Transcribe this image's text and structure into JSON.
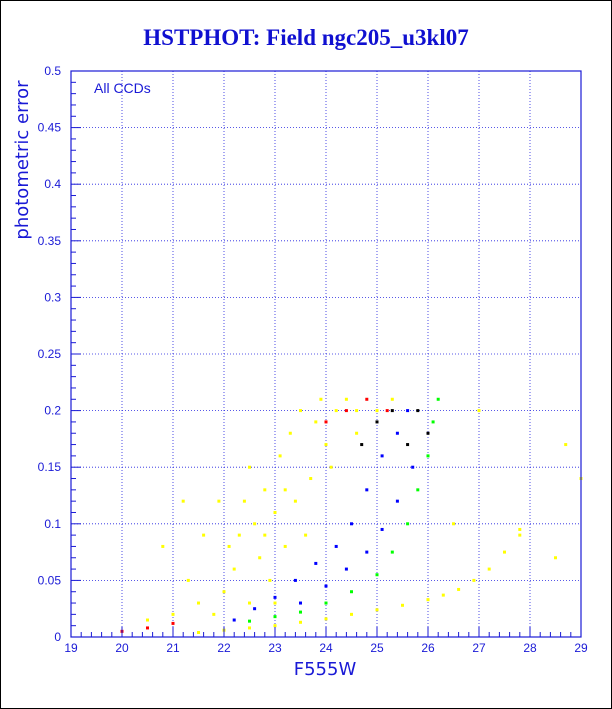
{
  "chart_data": {
    "type": "scatter",
    "title": "HSTPHOT: Field ngc205_u3kl07",
    "xlabel": "F555W",
    "ylabel": "photometric error",
    "annotation": "All CCDs",
    "xlim": [
      19,
      29
    ],
    "ylim": [
      0,
      0.5
    ],
    "xticks": [
      19,
      20,
      21,
      22,
      23,
      24,
      25,
      26,
      27,
      28,
      29
    ],
    "yticks": [
      0,
      0.05,
      0.1,
      0.15,
      0.2,
      0.25,
      0.3,
      0.35,
      0.4,
      0.45,
      0.5
    ],
    "grid": true,
    "series": [
      {
        "color": "#ffff00",
        "description": "broad yellow cloud",
        "points": [
          [
            21.8,
            0.02
          ],
          [
            22.0,
            0.04
          ],
          [
            22.2,
            0.06
          ],
          [
            22.3,
            0.09
          ],
          [
            22.4,
            0.12
          ],
          [
            22.5,
            0.15
          ],
          [
            22.6,
            0.1
          ],
          [
            22.7,
            0.07
          ],
          [
            22.8,
            0.13
          ],
          [
            22.9,
            0.05
          ],
          [
            23.0,
            0.11
          ],
          [
            23.1,
            0.16
          ],
          [
            23.2,
            0.08
          ],
          [
            23.3,
            0.18
          ],
          [
            23.4,
            0.12
          ],
          [
            23.5,
            0.2
          ],
          [
            23.6,
            0.09
          ],
          [
            23.7,
            0.14
          ],
          [
            23.8,
            0.19
          ],
          [
            23.9,
            0.21
          ],
          [
            24.0,
            0.17
          ],
          [
            24.2,
            0.2
          ],
          [
            24.4,
            0.21
          ],
          [
            24.6,
            0.2
          ],
          [
            22.1,
            0.08
          ],
          [
            22.5,
            0.03
          ],
          [
            23.0,
            0.03
          ],
          [
            22.8,
            0.09
          ],
          [
            23.2,
            0.13
          ],
          [
            24.1,
            0.15
          ],
          [
            24.6,
            0.18
          ],
          [
            20.5,
            0.015
          ],
          [
            21.0,
            0.02
          ],
          [
            21.5,
            0.03
          ],
          [
            21.3,
            0.05
          ],
          [
            21.6,
            0.09
          ],
          [
            21.9,
            0.12
          ],
          [
            25.0,
            0.2
          ],
          [
            25.3,
            0.21
          ],
          [
            27.8,
            0.09
          ],
          [
            28.5,
            0.07
          ],
          [
            28.7,
            0.17
          ],
          [
            29.0,
            0.14
          ],
          [
            27.0,
            0.2
          ],
          [
            26.5,
            0.1
          ],
          [
            21.2,
            0.12
          ],
          [
            20.8,
            0.08
          ]
        ]
      },
      {
        "color": "#ffff00",
        "description": "yellow lower sequence",
        "points": [
          [
            21.5,
            0.004
          ],
          [
            22.0,
            0.006
          ],
          [
            22.5,
            0.008
          ],
          [
            23.0,
            0.01
          ],
          [
            23.5,
            0.013
          ],
          [
            24.0,
            0.016
          ],
          [
            24.5,
            0.02
          ],
          [
            25.0,
            0.024
          ],
          [
            25.5,
            0.028
          ],
          [
            26.0,
            0.033
          ],
          [
            26.3,
            0.037
          ],
          [
            26.6,
            0.042
          ],
          [
            26.9,
            0.05
          ],
          [
            27.2,
            0.06
          ],
          [
            27.5,
            0.075
          ],
          [
            27.8,
            0.095
          ]
        ]
      },
      {
        "color": "#00ff00",
        "description": "green upper envelope",
        "points": [
          [
            22.5,
            0.014
          ],
          [
            23.0,
            0.018
          ],
          [
            23.5,
            0.022
          ],
          [
            24.0,
            0.03
          ],
          [
            24.5,
            0.04
          ],
          [
            25.0,
            0.055
          ],
          [
            25.3,
            0.075
          ],
          [
            25.6,
            0.1
          ],
          [
            25.8,
            0.13
          ],
          [
            26.0,
            0.16
          ],
          [
            26.1,
            0.19
          ],
          [
            26.2,
            0.21
          ]
        ]
      },
      {
        "color": "#0000ff",
        "description": "blue main sequence band",
        "points": [
          [
            22.2,
            0.015
          ],
          [
            22.6,
            0.025
          ],
          [
            23.0,
            0.035
          ],
          [
            23.4,
            0.05
          ],
          [
            23.8,
            0.065
          ],
          [
            24.2,
            0.08
          ],
          [
            24.5,
            0.1
          ],
          [
            24.8,
            0.13
          ],
          [
            25.1,
            0.16
          ],
          [
            25.4,
            0.18
          ],
          [
            25.6,
            0.2
          ],
          [
            23.5,
            0.03
          ],
          [
            24.0,
            0.045
          ],
          [
            24.4,
            0.06
          ],
          [
            24.8,
            0.075
          ],
          [
            25.1,
            0.095
          ],
          [
            25.4,
            0.12
          ],
          [
            25.7,
            0.15
          ]
        ]
      },
      {
        "color": "#ff0000",
        "description": "sparse red points",
        "points": [
          [
            20.0,
            0.005
          ],
          [
            20.5,
            0.008
          ],
          [
            21.0,
            0.012
          ],
          [
            24.0,
            0.19
          ],
          [
            24.4,
            0.2
          ],
          [
            24.8,
            0.21
          ],
          [
            25.2,
            0.2
          ]
        ]
      },
      {
        "color": "#000000",
        "description": "sparse black points",
        "points": [
          [
            24.7,
            0.17
          ],
          [
            25.0,
            0.19
          ],
          [
            25.3,
            0.2
          ],
          [
            25.6,
            0.17
          ],
          [
            25.8,
            0.2
          ],
          [
            26.0,
            0.18
          ]
        ]
      }
    ]
  }
}
